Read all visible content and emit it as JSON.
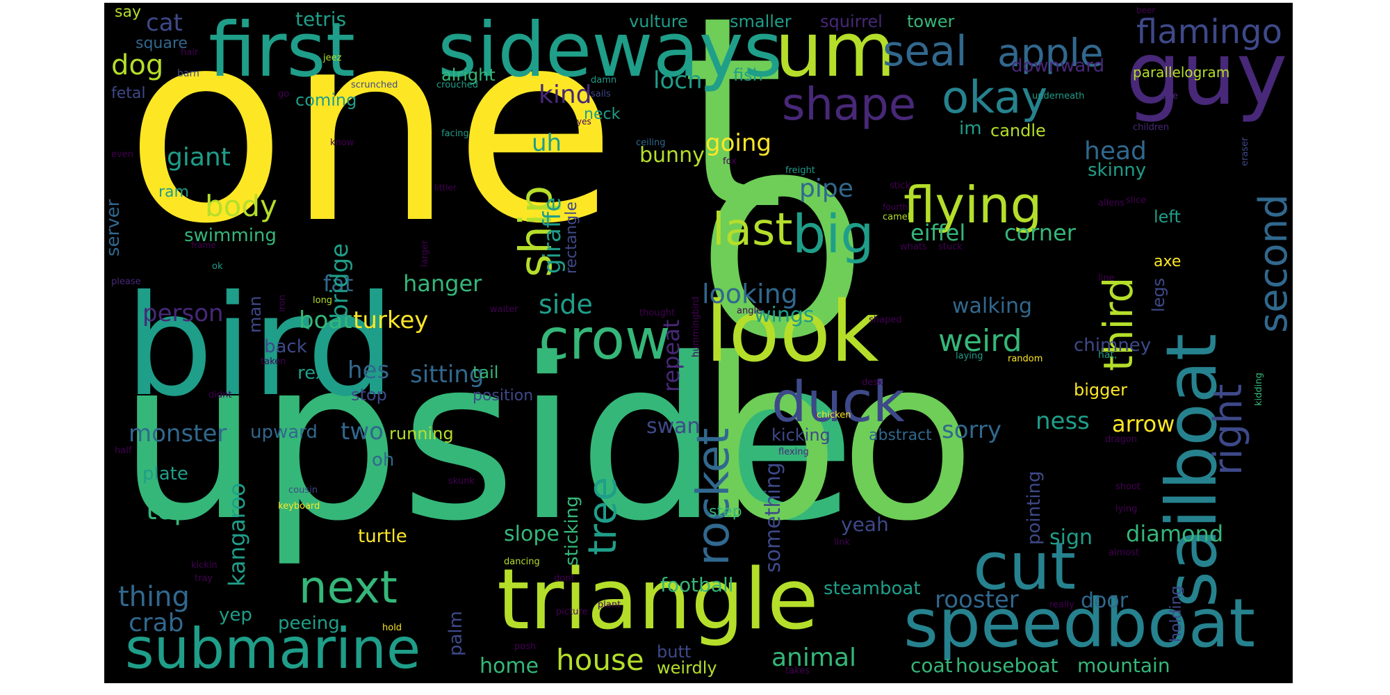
{
  "palette": {
    "yellow": "#fde725",
    "lime": "#b5de2b",
    "green": "#6ece58",
    "emerald": "#35b779",
    "teal": "#1f9e89",
    "cyan": "#26828e",
    "blue": "#31688e",
    "indigo": "#3e4989",
    "violet": "#482878",
    "purple": "#440154"
  },
  "words": {
    "one": "one",
    "t": "t",
    "o": "o",
    "upside": "upside",
    "bo": "bo",
    "bird": "bird",
    "first": "first",
    "sideways": "sideways",
    "um": "um",
    "guy": "guy",
    "seal": "seal",
    "apple": "apple",
    "flamingo": "flamingo",
    "look": "look",
    "triangle": "triangle",
    "speedboat": "speedboat",
    "sailboat": "sailboat",
    "submarine": "submarine",
    "crow": "crow",
    "duck": "duck",
    "cut": "cut",
    "shape": "shape",
    "okay": "okay",
    "flying": "flying",
    "big": "big",
    "last": "last",
    "ship": "ship",
    "tree": "tree",
    "rocket": "rocket",
    "next": "next",
    "third": "third",
    "right": "right",
    "second": "second",
    "house": "house",
    "dog": "dog",
    "cat": "cat",
    "tetris": "tetris",
    "say": "say",
    "square": "square",
    "vulture": "vulture",
    "smaller": "smaller",
    "squirrel": "squirrel",
    "tower": "tower",
    "kind": "kind",
    "loch": "loch",
    "alright": "alright",
    "fish": "fish",
    "downward": "downward",
    "parallelogram": "parallelogram",
    "fetal": "fetal",
    "coming": "coming",
    "neck": "neck",
    "im": "im",
    "candle": "candle",
    "going": "going",
    "head": "head",
    "giant": "giant",
    "uh": "uh",
    "bunny": "bunny",
    "skinny": "skinny",
    "body": "body",
    "pipe": "pipe",
    "server": "server",
    "ram": "ram",
    "swimming": "swimming",
    "bridge": "bridge",
    "giraffe": "giraffe",
    "rectangle": "rectangle",
    "eiffel": "eiffel",
    "corner": "corner",
    "left": "left",
    "fat": "fat",
    "hanger": "hanger",
    "looking": "looking",
    "person": "person",
    "boat": "boat",
    "turkey": "turkey",
    "side": "side",
    "wings": "wings",
    "walking": "walking",
    "legs": "legs",
    "weird": "weird",
    "chimney": "chimney",
    "back": "back",
    "man": "man",
    "rex": "rex",
    "hes": "hes",
    "sitting": "sitting",
    "repeat": "repeat",
    "tail": "tail",
    "stop": "stop",
    "position": "position",
    "bigger": "bigger",
    "monster": "monster",
    "upward": "upward",
    "two": "two",
    "swan": "swan",
    "running": "running",
    "kicking": "kicking",
    "sorry": "sorry",
    "ness": "ness",
    "arrow": "arrow",
    "abstract": "abstract",
    "plate": "plate",
    "oh": "oh",
    "top": "top",
    "kangaroo": "kangaroo",
    "turtle": "turtle",
    "slope": "slope",
    "something": "something",
    "yeah": "yeah",
    "step": "step",
    "pointing": "pointing",
    "sign": "sign",
    "diamond": "diamond",
    "sticking": "sticking",
    "thing": "thing",
    "crab": "crab",
    "yep": "yep",
    "peeing": "peeing",
    "football": "football",
    "palm": "palm",
    "steamboat": "steamboat",
    "rooster": "rooster",
    "door": "door",
    "holding": "holding",
    "home": "home",
    "weirdly": "weirdly",
    "butt": "butt",
    "animal": "animal",
    "coat": "coat",
    "houseboat": "houseboat",
    "mountain": "mountain",
    "axe": "axe",
    "hair": "hair",
    "barn": "barn",
    "jeez": "jeez",
    "damn": "damn",
    "bite": "bite",
    "beer": "beer",
    "scrunched": "scrunched",
    "crouched": "crouched",
    "sails": "sails",
    "underneath": "underneath",
    "go": "go",
    "yes": "yes",
    "facing": "facing",
    "know": "know",
    "even": "even",
    "ceiling": "ceiling",
    "fox": "fox",
    "children": "children",
    "freight": "freight",
    "stick": "stick",
    "eraser": "eraser",
    "littler": "littler",
    "allens": "allens",
    "frame": "frame",
    "camel": "camel",
    "fourth": "fourth",
    "ok": "ok",
    "larger": "larger",
    "whats": "whats",
    "slice": "slice",
    "please": "please",
    "long": "long",
    "iron": "iron",
    "waiter": "waiter",
    "thought": "thought",
    "angle": "angle",
    "hummingbird": "hummingbird",
    "laying": "laying",
    "random": "random",
    "taken": "taken",
    "shaped": "shaped",
    "hat": "hat,",
    "line": "line",
    "stuck": "stuck",
    "didnt": "didnt",
    "desk": "desk",
    "kidding": "kidding",
    "chicken": "chicken",
    "half": "half",
    "flexing": "flexing",
    "dragon": "dragon",
    "cousin": "cousin",
    "skunk": "skunk",
    "shoot": "shoot",
    "keyboard": "keyboard",
    "lying": "lying",
    "link": "link",
    "almost": "almost",
    "kickin": "kickin",
    "dancing": "dancing",
    "tray": "tray",
    "dont": "dont",
    "picture": "picture",
    "plant": "plant",
    "really": "really",
    "hold": "hold",
    "posh": "posh",
    "takes": "takes"
  }
}
